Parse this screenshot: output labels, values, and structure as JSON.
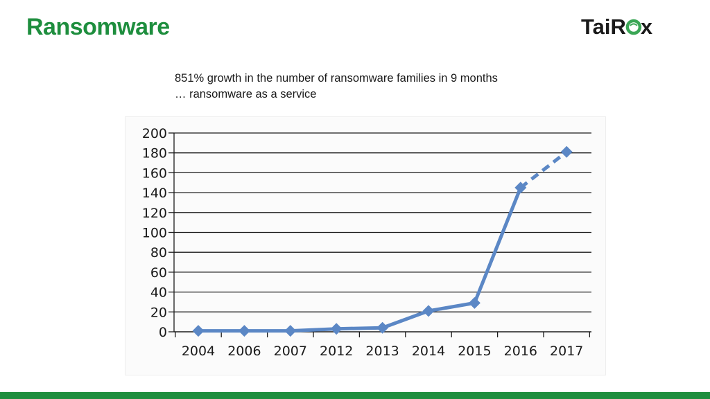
{
  "slide": {
    "title": "Ransomware",
    "subtitle_lines": [
      "851% growth in the number of ransomware families in 9 months",
      "… ransomware as a service"
    ]
  },
  "logo": {
    "text_before": "TaiR",
    "text_after": "x",
    "icon": "globe-o-icon"
  },
  "colors": {
    "title": "#1e8e3e",
    "logo_text": "#1a1a1a",
    "logo_globe": "#3aa655",
    "series": "#5b87c5",
    "grid": "#1a1a1a",
    "bottom_bar": "#1e8e3e"
  },
  "chart_data": {
    "type": "line",
    "title": "",
    "xlabel": "",
    "ylabel": "",
    "categories": [
      "2004",
      "2006",
      "2007",
      "2012",
      "2013",
      "2014",
      "2015",
      "2016",
      "2017"
    ],
    "series": [
      {
        "values": [
          1,
          1,
          1,
          3,
          4,
          21,
          29,
          145,
          181
        ],
        "marker": "diamond",
        "projected_from_index": 7
      }
    ],
    "ylim": [
      0,
      200
    ],
    "yticks": [
      0,
      20,
      40,
      60,
      80,
      100,
      120,
      140,
      160,
      180,
      200
    ],
    "grid": true,
    "legend": "none"
  }
}
